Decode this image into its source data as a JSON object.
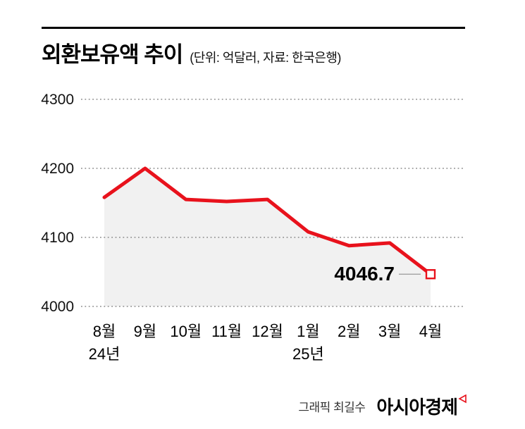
{
  "header": {
    "title": "외환보유액 추이",
    "subtitle": "(단위: 억달러, 자료: 한국은행)"
  },
  "footer": {
    "credit": "그래픽 최길수",
    "logo": "아시아경제"
  },
  "chart_data": {
    "type": "line",
    "title": "외환보유액 추이",
    "subtitle_unit_source": "(단위: 억달러, 자료: 한국은행)",
    "categories": [
      "8월",
      "9월",
      "10월",
      "11월",
      "12월",
      "1월",
      "2월",
      "3월",
      "4월"
    ],
    "values": [
      4158,
      4200,
      4155,
      4152,
      4155,
      4108,
      4088,
      4092,
      4046.7
    ],
    "year_labels": [
      {
        "index": 0,
        "label": "24년"
      },
      {
        "index": 5,
        "label": "25년"
      }
    ],
    "yticks": [
      4300,
      4200,
      4100,
      4000
    ],
    "ylim": [
      4000,
      4300
    ],
    "last_label": "4046.7",
    "line_color": "#e8121c",
    "area_color": "#f1f1f1",
    "grid": true,
    "legend_position": "none"
  }
}
